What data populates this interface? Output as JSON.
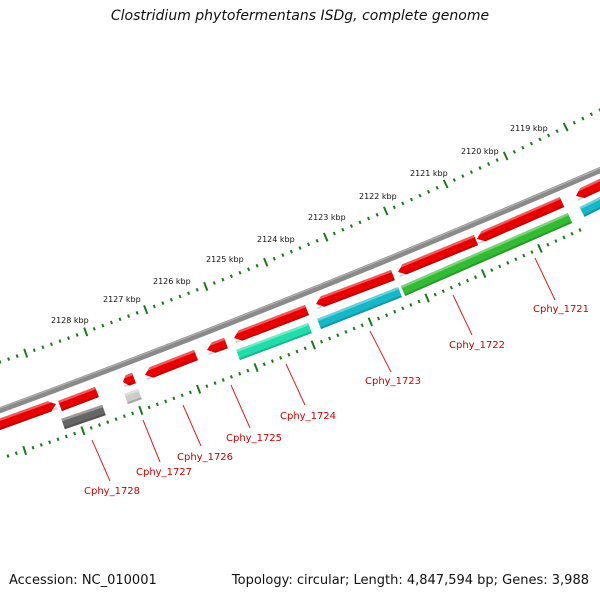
{
  "title": "Clostridium phytofermentans ISDg, complete genome",
  "footer": {
    "accession": "Accession: NC_010001",
    "summary": "Topology: circular; Length: 4,847,594 bp; Genes: 3,988"
  },
  "colors": {
    "backbone": "#7a7a7a",
    "tick": "#1a7a1a",
    "forward_gene": "#e80000",
    "label": "#cc0000",
    "leader": "#dd2222",
    "cog_green": "#33bb33",
    "cog_cyan": "#16b8c8",
    "cog_teal": "#22ddaa",
    "cog_gray": "#666666",
    "cog_lightgray": "#cccccc"
  },
  "kbp_labels": [
    "2128 kbp",
    "2127 kbp",
    "2126 kbp",
    "2125 kbp",
    "2124 kbp",
    "2123 kbp",
    "2122 kbp",
    "2121 kbp",
    "2120 kbp",
    "2119 kbp"
  ],
  "genes": [
    {
      "name": "Cphy_1728",
      "color": "cog_gray"
    },
    {
      "name": "Cphy_1727",
      "color": "cog_lightgray"
    },
    {
      "name": "Cphy_1726",
      "color": "forward_gene"
    },
    {
      "name": "Cphy_1725",
      "color": "forward_gene"
    },
    {
      "name": "Cphy_1724",
      "color": "cog_teal"
    },
    {
      "name": "Cphy_1723",
      "color": "cog_cyan"
    },
    {
      "name": "Cphy_1722",
      "color": "cog_green"
    },
    {
      "name": "Cphy_1721",
      "color": "cog_cyan"
    }
  ]
}
